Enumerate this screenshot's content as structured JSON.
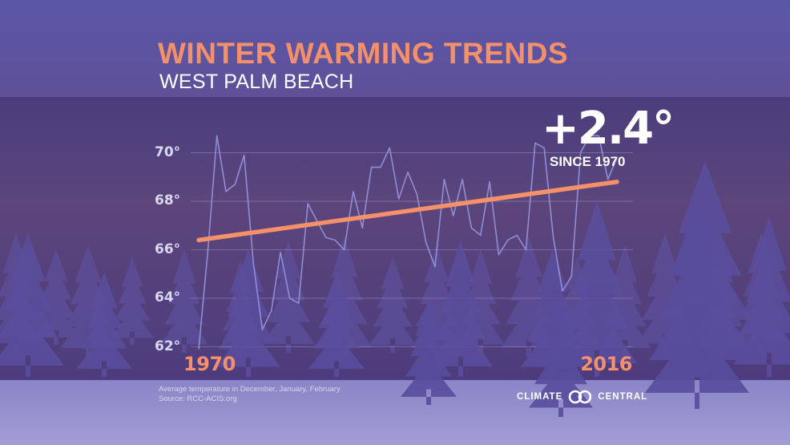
{
  "header": {
    "title": "WINTER WARMING TRENDS",
    "subtitle": "WEST PALM BEACH"
  },
  "callout": {
    "value": "+2.4°",
    "label": "SINCE 1970"
  },
  "footer": {
    "note": "Average temperature in December, January, February",
    "source": "Source: RCC-ACIS.org"
  },
  "logo": {
    "left": "CLIMATE",
    "right": "CENTRAL"
  },
  "colors": {
    "accent": "#f4906a",
    "series_line": "#8f8ed6",
    "background": "#4a3f8a"
  },
  "chart_data": {
    "type": "line",
    "title": "WINTER WARMING TRENDS",
    "subtitle": "WEST PALM BEACH",
    "x_tick_labels": [
      "1970",
      "2016"
    ],
    "y_tick_labels": [
      "62°",
      "64°",
      "66°",
      "68°",
      "70°"
    ],
    "ylim": [
      61.5,
      71
    ],
    "grid": true,
    "series": [
      {
        "x": [
          1970,
          1971,
          1972,
          1973,
          1974,
          1975,
          1976,
          1977,
          1978,
          1979,
          1980,
          1981,
          1982,
          1983,
          1984,
          1985,
          1986,
          1987,
          1988,
          1989,
          1990,
          1991,
          1992,
          1993,
          1994,
          1995,
          1996,
          1997,
          1998,
          1999,
          2000,
          2001,
          2002,
          2003,
          2004,
          2005,
          2006,
          2007,
          2008,
          2009,
          2010,
          2011,
          2012,
          2013,
          2014,
          2015,
          2016
        ],
        "values": [
          61.9,
          65.9,
          70.7,
          68.4,
          68.7,
          69.9,
          65.5,
          62.7,
          63.5,
          65.9,
          64.0,
          63.8,
          67.9,
          67.2,
          66.5,
          66.4,
          66.0,
          68.4,
          66.9,
          69.4,
          69.4,
          70.2,
          68.1,
          69.2,
          68.3,
          66.3,
          65.3,
          68.9,
          67.4,
          68.9,
          66.9,
          66.6,
          68.8,
          65.8,
          66.4,
          66.6,
          66.0,
          70.4,
          70.2,
          66.5,
          64.3,
          64.9,
          70.0,
          70.7,
          70.7,
          68.9,
          69.8
        ]
      },
      {
        "name": "trend",
        "x": [
          1970,
          2016
        ],
        "values": [
          66.4,
          68.8
        ]
      }
    ]
  }
}
